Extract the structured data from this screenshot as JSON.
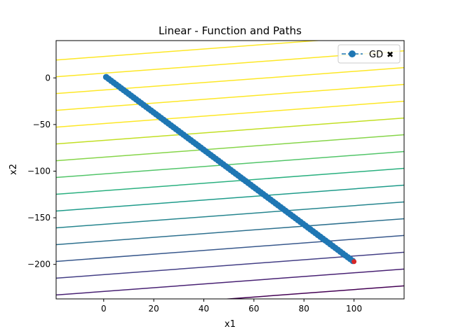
{
  "chart_data": {
    "type": "line",
    "title": "Linear - Function and Paths",
    "xlabel": "x1",
    "ylabel": "x2",
    "xlim": [
      -19,
      120
    ],
    "ylim": [
      -237,
      40
    ],
    "xticks": [
      0,
      20,
      40,
      60,
      80,
      100
    ],
    "yticks": [
      0,
      -50,
      -100,
      -150,
      -200
    ],
    "xtick_labels": [
      "0",
      "20",
      "40",
      "60",
      "80",
      "100"
    ],
    "ytick_labels": [
      "0",
      "−50",
      "−100",
      "−150",
      "−200"
    ],
    "contours": {
      "slope": 0.2,
      "intercepts": [
        -247,
        -229,
        -211,
        -193,
        -175,
        -157,
        -139,
        -121,
        -103,
        -85,
        -67,
        -49,
        -31,
        -13,
        5,
        23
      ],
      "colormap": "viridis",
      "colors": [
        "#440154",
        "#482173",
        "#433e85",
        "#38588c",
        "#2d708e",
        "#25858e",
        "#1e9b8a",
        "#2ab07f",
        "#52c569",
        "#86d549",
        "#c2df23",
        "#fde725"
      ]
    },
    "series": [
      {
        "name": "GD",
        "color": "#1f77b4",
        "marker": "circle",
        "linestyle": "dashed",
        "x_start": 1,
        "y_start": 0.9,
        "x_end": 99.5,
        "y_end": -196.3,
        "n_points": 100
      }
    ],
    "end_marker": {
      "x": 100,
      "y": -197,
      "color": "#d62728"
    },
    "legend": {
      "position": "top-right",
      "entries": [
        {
          "label": "GD",
          "end_symbol": "✖"
        }
      ]
    },
    "grid": false
  }
}
